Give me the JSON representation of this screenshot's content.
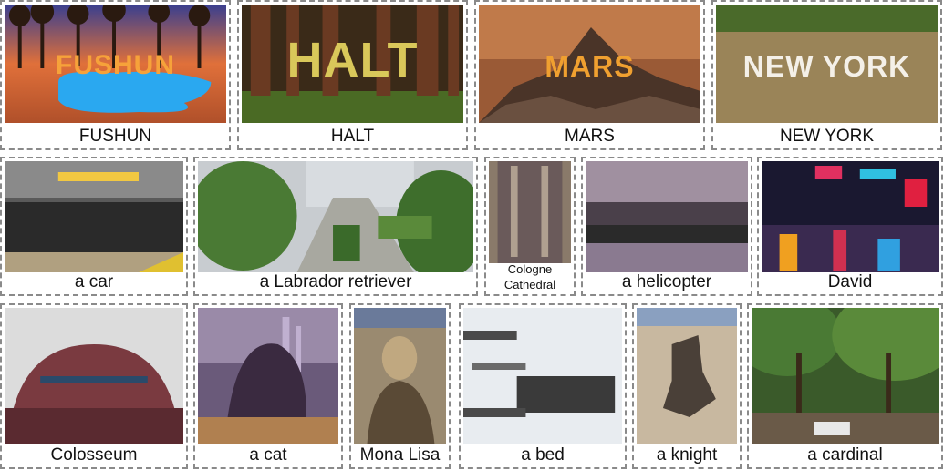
{
  "rows": [
    {
      "tiles": [
        {
          "caption": "FUSHUN",
          "overlay": "FUSHUN",
          "scene": "desert-oasis-sunset"
        },
        {
          "caption": "HALT",
          "overlay": "HALT",
          "scene": "redwood-forest"
        },
        {
          "caption": "MARS",
          "overlay": "MARS",
          "scene": "mountain-peak-clouds"
        },
        {
          "caption": "NEW YORK",
          "overlay": "NEW YORK",
          "scene": "people-on-field"
        }
      ]
    },
    {
      "tiles": [
        {
          "caption": "a car",
          "scene": "subway-crowd"
        },
        {
          "caption": "a Labrador retriever",
          "scene": "rooftop-garden"
        },
        {
          "caption_line1": "Cologne",
          "caption_line2": "Cathedral",
          "scene": "aerial-crowd"
        },
        {
          "caption": "a helicopter",
          "scene": "dance-hall"
        },
        {
          "caption": "David",
          "scene": "neon-city-night"
        }
      ]
    },
    {
      "tiles": [
        {
          "caption": "Colosseum",
          "scene": "clothing-colosseum"
        },
        {
          "caption": "a cat",
          "scene": "night-skyline"
        },
        {
          "caption": "Mona Lisa",
          "scene": "crowd-portrait"
        },
        {
          "caption": "a bed",
          "scene": "sheep-in-snow"
        },
        {
          "caption": "a knight",
          "scene": "aerial-people"
        },
        {
          "caption": "a cardinal",
          "scene": "tree-canopy-crowd"
        }
      ]
    }
  ],
  "colors": {
    "border": "#8a8a8a",
    "caption": "#111111"
  }
}
